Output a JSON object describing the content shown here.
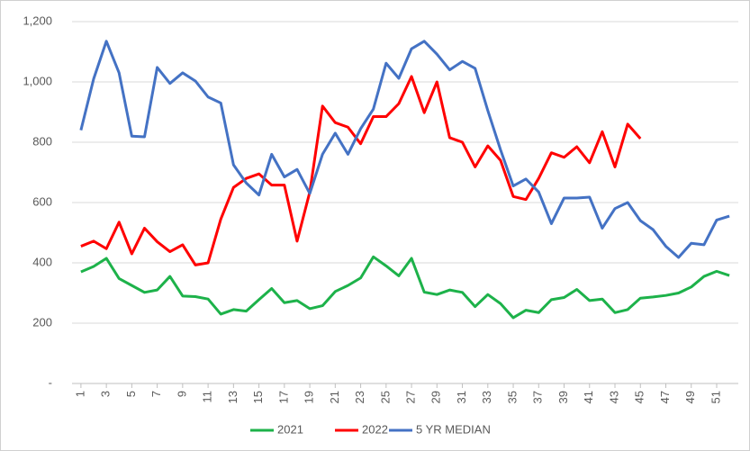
{
  "chart_data": {
    "type": "line",
    "x": [
      1,
      2,
      3,
      4,
      5,
      6,
      7,
      8,
      9,
      10,
      11,
      12,
      13,
      14,
      15,
      16,
      17,
      18,
      19,
      20,
      21,
      22,
      23,
      24,
      25,
      26,
      27,
      28,
      29,
      30,
      31,
      32,
      33,
      34,
      35,
      36,
      37,
      38,
      39,
      40,
      41,
      42,
      43,
      44,
      45,
      46,
      47,
      48,
      49,
      50,
      51,
      52
    ],
    "xlim": [
      0.3,
      52.7
    ],
    "xticks": [
      1,
      3,
      5,
      7,
      9,
      11,
      13,
      15,
      17,
      19,
      21,
      23,
      25,
      27,
      29,
      31,
      33,
      35,
      37,
      39,
      41,
      43,
      45,
      47,
      49,
      51
    ],
    "ylim": [
      0,
      1200
    ],
    "yticks": [
      {
        "value": 0,
        "label": "-"
      },
      200,
      400,
      600,
      800,
      {
        "value": 1000,
        "label": "1,000"
      },
      {
        "value": 1200,
        "label": "1,200"
      }
    ],
    "grid": true,
    "legend": "bottom",
    "series": [
      {
        "name": "2021",
        "color": "#1db24a",
        "values": [
          370,
          388,
          415,
          348,
          325,
          302,
          310,
          355,
          290,
          288,
          280,
          230,
          245,
          240,
          278,
          315,
          268,
          275,
          248,
          258,
          305,
          325,
          350,
          420,
          390,
          357,
          415,
          303,
          295,
          310,
          302,
          255,
          295,
          265,
          218,
          243,
          235,
          278,
          285,
          312,
          275,
          280,
          235,
          245,
          283,
          287,
          292,
          300,
          320,
          355,
          372,
          358
        ]
      },
      {
        "name": "2022",
        "color": "#ff0000",
        "values": [
          455,
          472,
          447,
          535,
          430,
          515,
          470,
          437,
          460,
          393,
          400,
          545,
          650,
          680,
          695,
          658,
          658,
          472,
          635,
          920,
          865,
          850,
          795,
          885,
          885,
          928,
          1018,
          898,
          1000,
          815,
          800,
          718,
          788,
          740,
          620,
          610,
          680,
          765,
          750,
          785,
          732,
          835,
          718,
          860,
          812,
          null,
          null,
          null,
          null,
          null,
          null,
          null
        ]
      },
      {
        "name": "5 YR MEDIAN",
        "color": "#4472c4",
        "values": [
          840,
          1010,
          1135,
          1030,
          820,
          818,
          1048,
          995,
          1030,
          1003,
          950,
          930,
          725,
          665,
          625,
          760,
          685,
          710,
          630,
          760,
          830,
          760,
          845,
          910,
          1062,
          1012,
          1110,
          1135,
          1092,
          1040,
          1068,
          1045,
          905,
          775,
          655,
          678,
          635,
          530,
          615,
          615,
          618,
          515,
          580,
          600,
          540,
          510,
          455,
          418,
          465,
          460,
          542,
          555
        ]
      }
    ]
  }
}
